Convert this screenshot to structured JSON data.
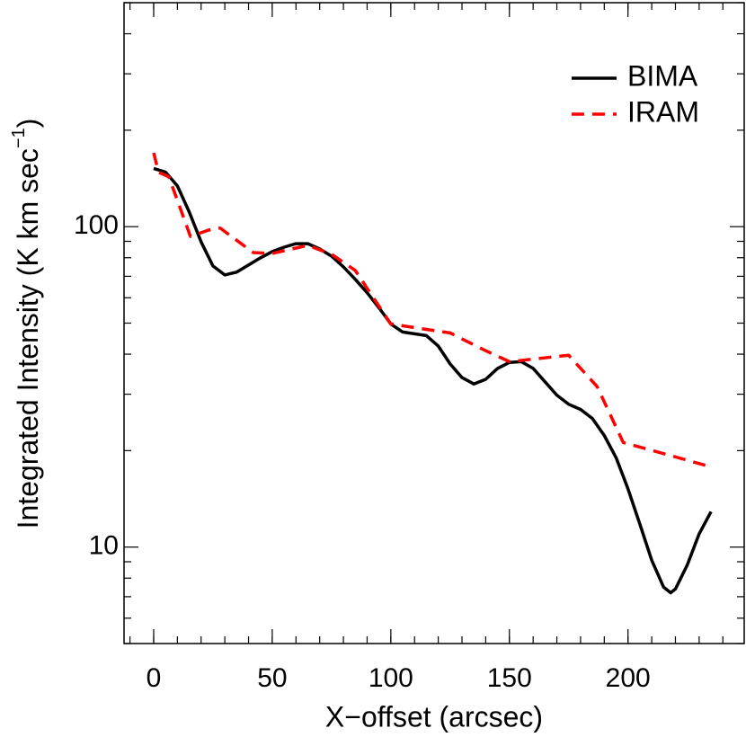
{
  "chart_data": {
    "type": "line",
    "log_y": true,
    "xlabel": "X−offset (arcsec)",
    "ylabel": "Integrated Intensity (K km sec",
    "ylabel_sup": "−1",
    "ylabel_end": ")",
    "xlim": [
      -12.5,
      249
    ],
    "ylim": [
      5,
      500
    ],
    "xticks": [
      0,
      50,
      100,
      150,
      200
    ],
    "yticks": [
      10,
      100
    ],
    "legend": "upper right",
    "series": [
      {
        "name": "BIMA",
        "color": "#000000",
        "dash": false,
        "x": [
          0,
          5,
          10,
          15,
          20,
          25,
          30,
          35,
          40,
          45,
          50,
          55,
          60,
          65,
          70,
          75,
          80,
          85,
          90,
          95,
          100,
          105,
          110,
          115,
          120,
          125,
          130,
          135,
          140,
          145,
          150,
          155,
          160,
          165,
          170,
          175,
          180,
          185,
          190,
          195,
          200,
          205,
          210,
          215,
          218,
          220,
          225,
          230,
          235
        ],
        "values": [
          152,
          148,
          134,
          111,
          89.6,
          75.4,
          70.7,
          72.1,
          75.9,
          79.9,
          83.6,
          86.3,
          88.5,
          88.5,
          85.2,
          80.9,
          74.9,
          68.5,
          62.2,
          55.8,
          49.7,
          46.9,
          46.3,
          45.7,
          42.4,
          37.3,
          33.8,
          32.3,
          33.4,
          36.1,
          37.7,
          37.9,
          36.1,
          32.8,
          29.8,
          27.9,
          26.9,
          25.2,
          22.3,
          19.0,
          15.2,
          11.8,
          9.1,
          7.5,
          7.2,
          7.4,
          8.8,
          11.0,
          12.9
        ]
      },
      {
        "name": "IRAM",
        "color": "#ff0000",
        "dash": true,
        "x": [
          0,
          2,
          6.4,
          15.5,
          23,
          28,
          42,
          50,
          65,
          75,
          85,
          100,
          110,
          125,
          140,
          150,
          175,
          187,
          198,
          235
        ],
        "values": [
          170,
          148,
          143,
          93.2,
          97.5,
          99,
          83,
          82.5,
          87.4,
          82,
          73,
          49.7,
          48.4,
          46.6,
          41,
          37.9,
          39.7,
          31.7,
          21.2,
          17.8
        ]
      }
    ]
  }
}
